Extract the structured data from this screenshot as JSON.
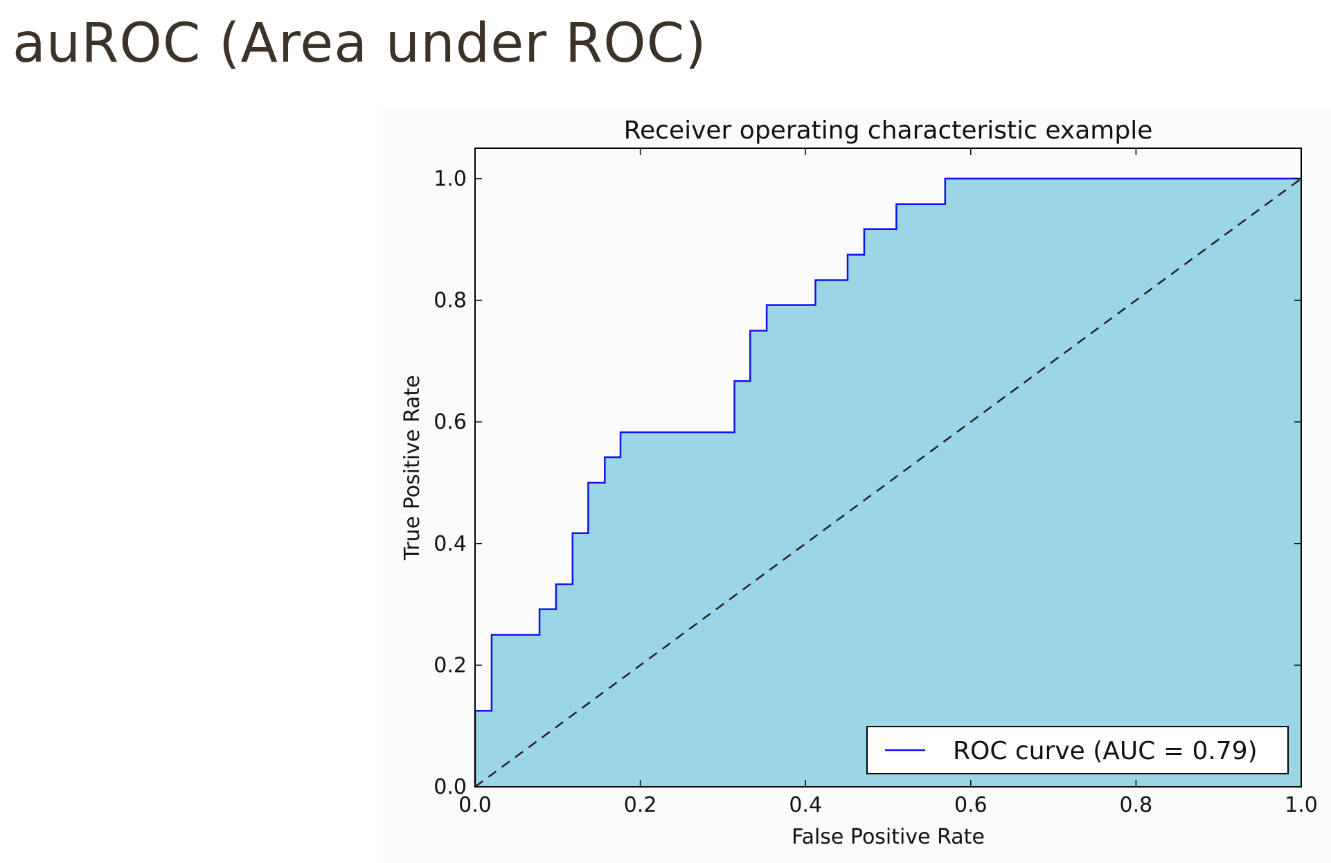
{
  "slide": {
    "title": "auROC (Area under ROC)"
  },
  "chart_data": {
    "type": "line",
    "title": "Receiver operating characteristic example",
    "xlabel": "False Positive Rate",
    "ylabel": "True Positive Rate",
    "xlim": [
      0.0,
      1.0
    ],
    "ylim": [
      0.0,
      1.05
    ],
    "xticks": [
      "0.0",
      "0.2",
      "0.4",
      "0.6",
      "0.8",
      "1.0"
    ],
    "yticks": [
      "0.0",
      "0.2",
      "0.4",
      "0.6",
      "0.8",
      "1.0"
    ],
    "grid": false,
    "legend_position": "lower-right",
    "colors": {
      "curve": "#1010ee",
      "fill": "#9ad6e6",
      "baseline": "#222222",
      "frame": "#000000"
    },
    "series": [
      {
        "name": "ROC curve (AUC = 0.79)",
        "style": "solid",
        "x": [
          0.0,
          0.0,
          0.02,
          0.02,
          0.078,
          0.078,
          0.098,
          0.098,
          0.118,
          0.118,
          0.137,
          0.137,
          0.157,
          0.157,
          0.176,
          0.176,
          0.314,
          0.314,
          0.333,
          0.333,
          0.353,
          0.353,
          0.412,
          0.412,
          0.451,
          0.451,
          0.471,
          0.471,
          0.51,
          0.51,
          0.569,
          0.569,
          1.0
        ],
        "y": [
          0.0,
          0.125,
          0.125,
          0.25,
          0.25,
          0.292,
          0.292,
          0.333,
          0.333,
          0.417,
          0.417,
          0.5,
          0.5,
          0.542,
          0.542,
          0.583,
          0.583,
          0.667,
          0.667,
          0.75,
          0.75,
          0.792,
          0.792,
          0.833,
          0.833,
          0.875,
          0.875,
          0.917,
          0.917,
          0.958,
          0.958,
          1.0,
          1.0
        ]
      },
      {
        "style": "dashed",
        "x": [
          0.0,
          1.0
        ],
        "y": [
          0.0,
          1.0
        ]
      }
    ]
  }
}
